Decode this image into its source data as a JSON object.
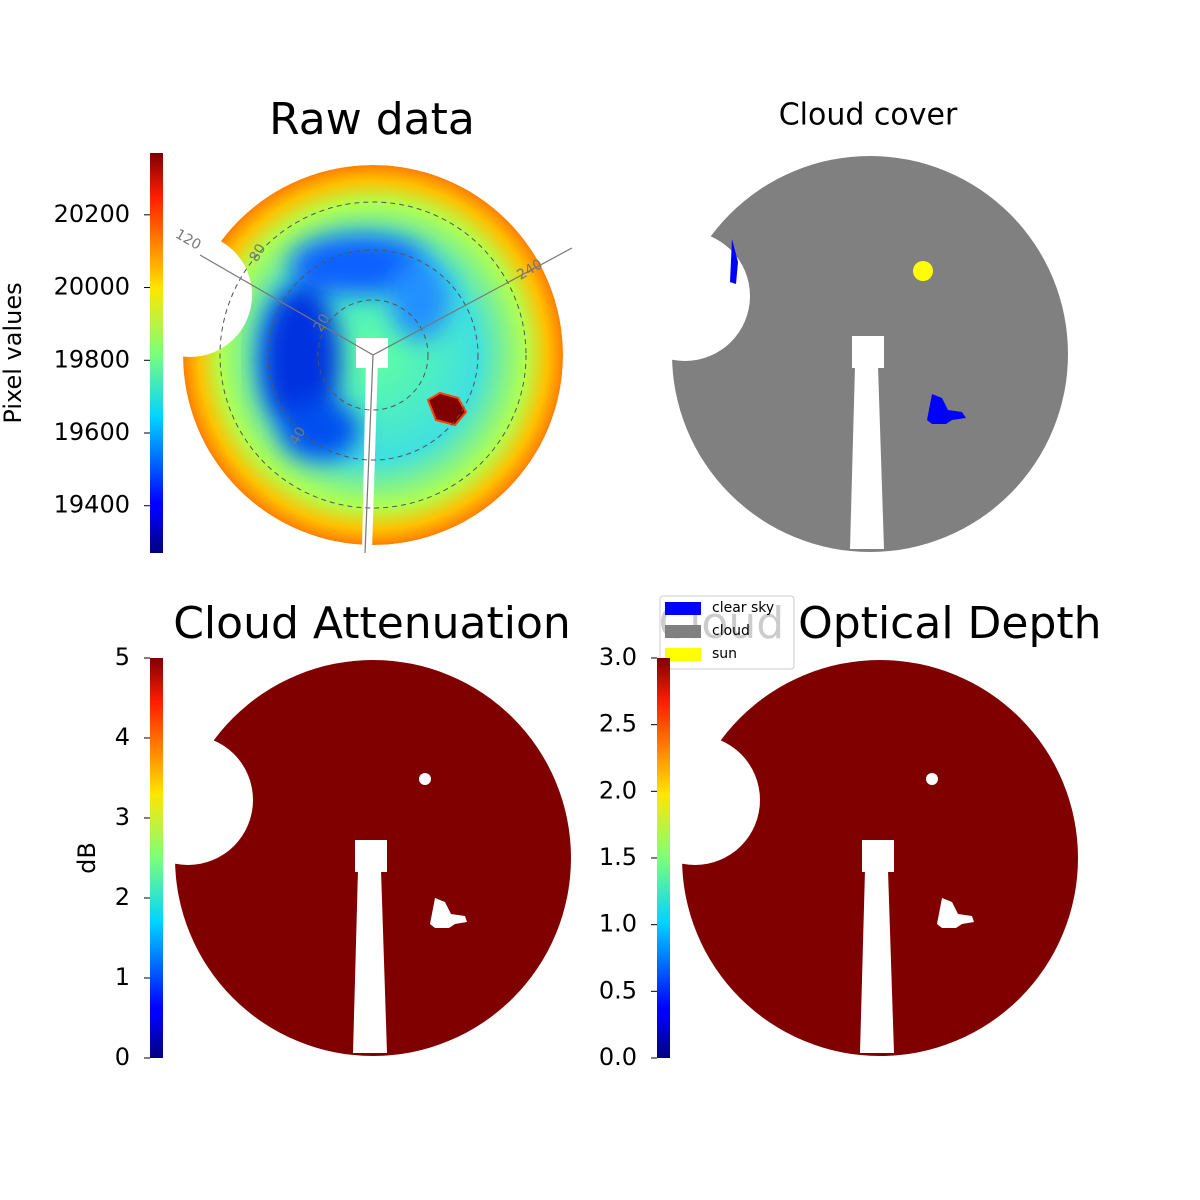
{
  "chart_data": [
    {
      "type": "image",
      "title": "Raw data",
      "polar_labels": [
        "120",
        "240",
        "80",
        "20",
        "40"
      ],
      "colorbar": {
        "label": "Pixel values",
        "colormap": "jet",
        "lim": [
          19270,
          20370
        ],
        "ticks": [
          19400,
          19600,
          19800,
          20000,
          20200
        ]
      }
    },
    {
      "type": "image",
      "title": "Cloud cover",
      "legend": [
        {
          "name": "clear sky",
          "color": "#0000ff"
        },
        {
          "name": "cloud",
          "color": "#808080"
        },
        {
          "name": "sun",
          "color": "#ffff00"
        }
      ]
    },
    {
      "type": "image",
      "title": "Cloud Attenuation",
      "colorbar": {
        "label": "dB",
        "colormap": "jet",
        "lim": [
          0,
          5
        ],
        "ticks": [
          0,
          1,
          2,
          3,
          4,
          5
        ]
      }
    },
    {
      "type": "image",
      "title": "Cloud Optical Depth",
      "colorbar": {
        "colormap": "jet",
        "lim": [
          0,
          3
        ],
        "ticks": [
          {
            "value": 0,
            "label": "0.0"
          },
          {
            "value": 0.5,
            "label": "0.5"
          },
          {
            "value": 1,
            "label": "1.0"
          },
          {
            "value": 1.5,
            "label": "1.5"
          },
          {
            "value": 2,
            "label": "2.0"
          },
          {
            "value": 2.5,
            "label": "2.5"
          },
          {
            "value": 3,
            "label": "3.0"
          }
        ]
      }
    }
  ]
}
